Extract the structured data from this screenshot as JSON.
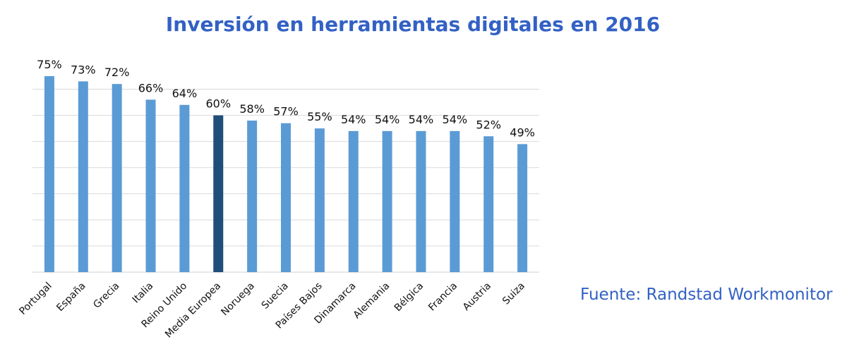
{
  "colors": {
    "title": "#3361c4",
    "source": "#3361c4",
    "bar": "#5b9bd5",
    "bar_highlight": "#1f4e79",
    "grid": "#d9d9d9"
  },
  "source_note": "Fuente: Randstad Workmonitor",
  "chart_data": {
    "type": "bar",
    "title": "Inversión en herramientas digitales en 2016",
    "xlabel": "",
    "ylabel": "",
    "ylim": [
      0,
      75
    ],
    "grid": true,
    "value_axis_labels": false,
    "categories": [
      "Portugal",
      "España",
      "Grecia",
      "Italia",
      "Reino Unido",
      "Media Europea",
      "Noruega",
      "Suecia",
      "Países Bajos",
      "Dinamarca",
      "Alemania",
      "Bélgica",
      "Francia",
      "Austria",
      "Suiza"
    ],
    "values": [
      75,
      73,
      72,
      66,
      64,
      60,
      58,
      57,
      55,
      54,
      54,
      54,
      54,
      52,
      49
    ],
    "data_labels": [
      "75%",
      "73%",
      "72%",
      "66%",
      "64%",
      "60%",
      "58%",
      "57%",
      "55%",
      "54%",
      "54%",
      "54%",
      "54%",
      "52%",
      "49%"
    ],
    "highlight_category": "Media Europea"
  }
}
